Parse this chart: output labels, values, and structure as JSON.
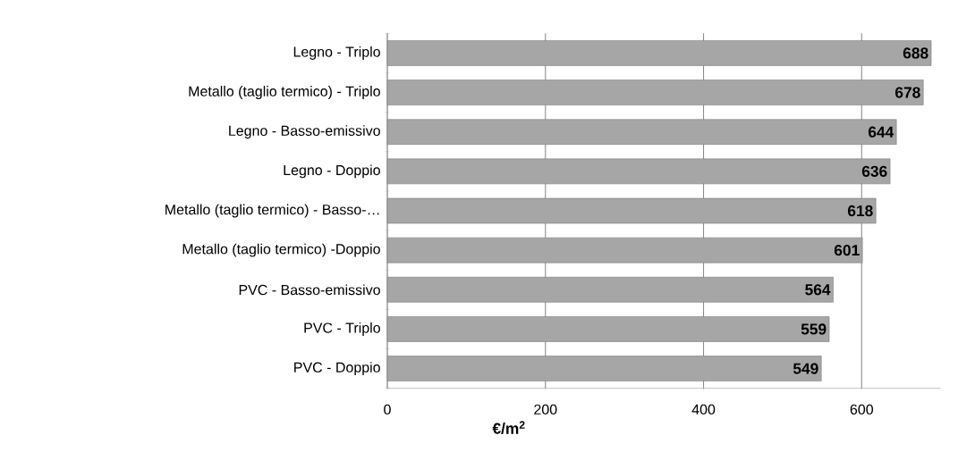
{
  "chart_data": {
    "type": "bar",
    "orientation": "horizontal",
    "xlabel": "€/m$^{2}$",
    "categories": [
      "Legno - Triplo",
      "Metallo (taglio termico) - Triplo",
      "Legno - Basso-emissivo",
      "Legno - Doppio",
      "Metallo (taglio termico) - Basso-…",
      "Metallo (taglio termico) -Doppio",
      "PVC - Basso-emissivo",
      "PVC - Triplo",
      "PVC - Doppio"
    ],
    "values": [
      688,
      678,
      644,
      636,
      618,
      601,
      564,
      559,
      549
    ],
    "color": "#a6a6a6",
    "data_labels": true,
    "grid": "x",
    "xlim": [
      0,
      700
    ],
    "xticks": [
      0,
      200,
      400,
      600
    ]
  }
}
